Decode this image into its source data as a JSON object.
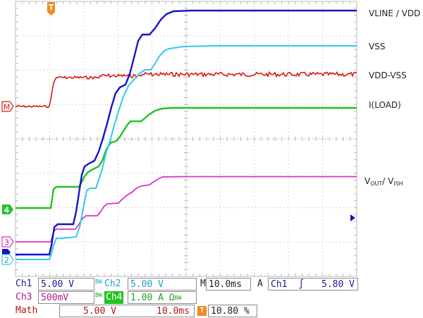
{
  "screen": {
    "trigger_marker": "T",
    "math_marker": "M",
    "ch4_marker": "4",
    "ch3_marker": "3",
    "ch2_marker": "2",
    "labels": {
      "vline_vdd": "VLINE / VDD",
      "vss": "VSS",
      "vdd_vss": "VDD-VSS",
      "iload": "I(LOAD)",
      "vout_main": "V",
      "vout_sub1": "OUT",
      "vout_mid": "/ V",
      "vout_sub2": "ISH"
    }
  },
  "colors": {
    "grid": "#b8b8b8",
    "ch1": "#1515c8",
    "ch2": "#34c6f0",
    "ch3": "#e030c8",
    "ch4": "#22c222",
    "math": "#d81818",
    "trigger": "#f08a20",
    "label_text": "#222222",
    "status_text_ch1": "#1a1a9a",
    "status_text_ch2": "#1aa0c8",
    "status_text_ch3": "#b01890",
    "status_text_math": "#b01818"
  },
  "status": {
    "ch1_name": "Ch1",
    "ch1_scale": "5.00 V",
    "ch2_name": "Ch2",
    "ch2_scale": "5.00 V",
    "timebase_label": "M",
    "timebase": "10.0ms",
    "acq_mode": "A",
    "trig_source": "Ch1",
    "trig_slope": "∫",
    "trig_level": "5.80 V",
    "ch3_name": "Ch3",
    "ch3_scale": "500mV",
    "ch4_name": "Ch4",
    "ch4_scale": "1.00 A Ω",
    "bw_mark": "BW",
    "math_name": "Math",
    "math_scale": "5.00 V",
    "math_time": "10.0ms",
    "trigger_pos": "10.80 %"
  }
}
